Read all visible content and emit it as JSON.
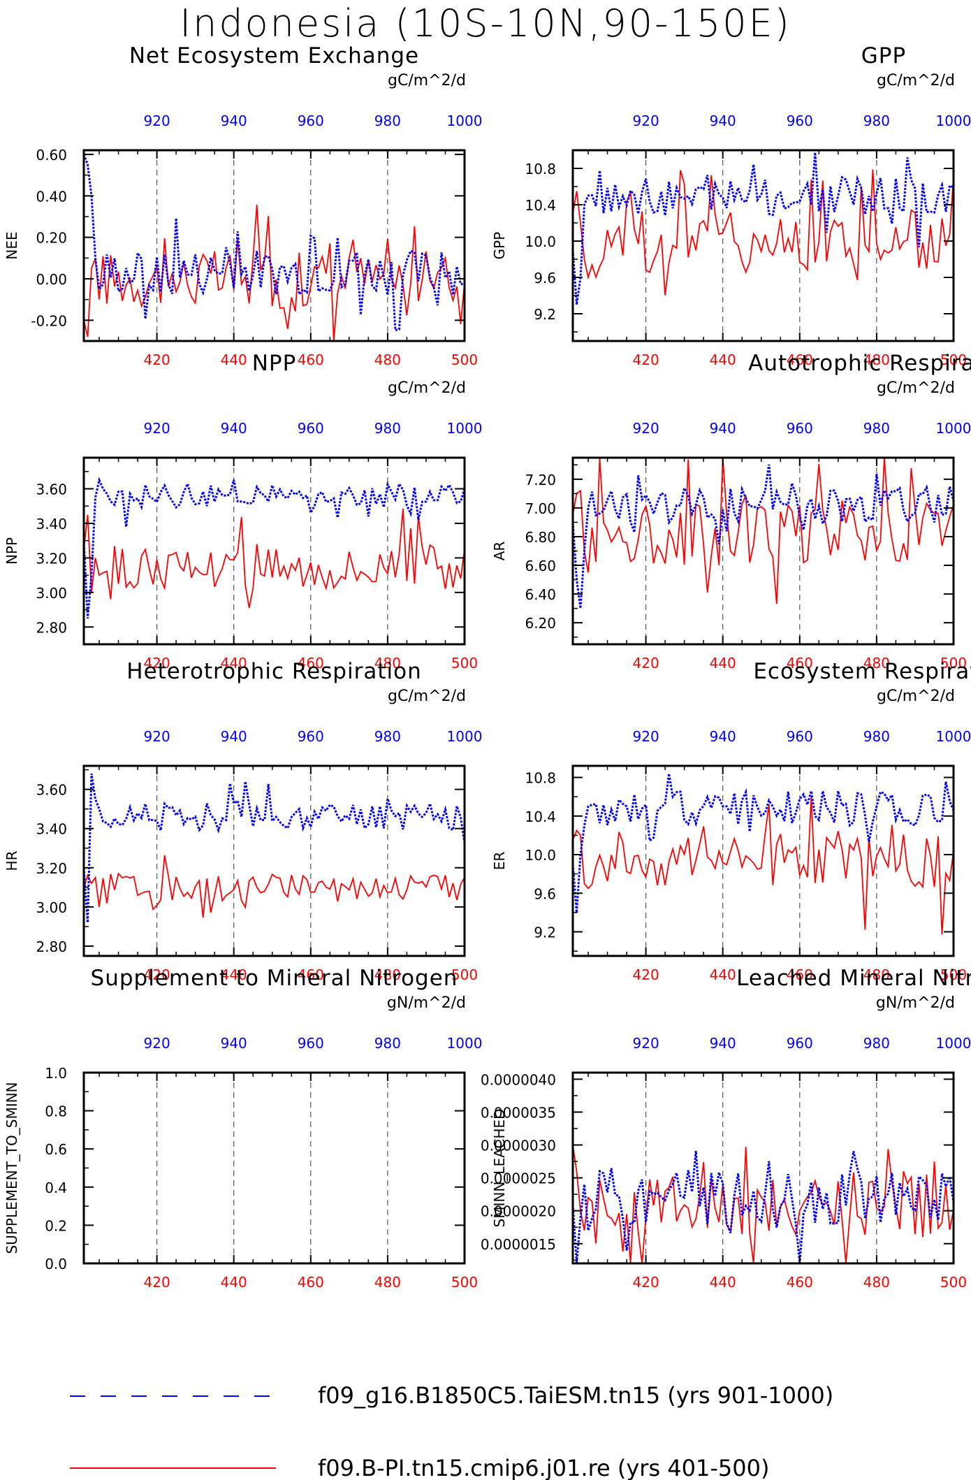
{
  "main_title": "Indonesia (10S-10N,90-150E)",
  "colors": {
    "case1": "#0000ff",
    "case2": "#ff0000",
    "axis": "#000000",
    "grid": "#555555"
  },
  "top_axis": {
    "ticks": [
      920,
      940,
      960,
      980,
      1000
    ],
    "range": [
      901,
      1000
    ]
  },
  "bottom_axis": {
    "ticks": [
      420,
      440,
      460,
      480,
      500
    ],
    "range": [
      401,
      500
    ]
  },
  "legend": {
    "case1": "f09_g16.B1850C5.TaiESM.tn15 (yrs 901-1000)",
    "case2": "f09.B-PI.tn15.cmip6.j01.re (yrs 401-500)"
  },
  "chart_data": [
    {
      "type": "line",
      "title": "Net Ecosystem Exchange",
      "ylabel": "NEE",
      "units": "gC/m^2/d",
      "ylim": [
        -0.3,
        0.62
      ],
      "yticks": [
        "-0.20",
        "0.00",
        "0.20",
        "0.40",
        "0.60"
      ],
      "yticks_num": [
        -0.2,
        0.0,
        0.2,
        0.4,
        0.6
      ],
      "case1": {
        "mean": 0.03,
        "amp": 0.11,
        "start": [
          0.6,
          0.55,
          0.4,
          0.1,
          -0.05
        ]
      },
      "case2": {
        "mean": 0.0,
        "amp": 0.14,
        "start": [
          -0.2,
          -0.28,
          0.05,
          0.1,
          -0.1
        ]
      }
    },
    {
      "type": "line",
      "title": "GPP",
      "ylabel": "GPP",
      "units": "gC/m^2/d",
      "ylim": [
        8.9,
        11.0
      ],
      "yticks": [
        "9.2",
        "9.6",
        "10.0",
        "10.4",
        "10.8"
      ],
      "yticks_num": [
        9.2,
        9.6,
        10.0,
        10.4,
        10.8
      ],
      "case1": {
        "mean": 10.5,
        "amp": 0.22,
        "start": [
          9.9,
          9.3,
          9.6,
          10.4,
          10.5
        ]
      },
      "case2": {
        "mean": 10.0,
        "amp": 0.35,
        "start": [
          10.3,
          10.55,
          10.2,
          9.8,
          9.6
        ]
      }
    },
    {
      "type": "line",
      "title": "NPP",
      "ylabel": "NPP",
      "units": "gC/m^2/d",
      "ylim": [
        2.7,
        3.78
      ],
      "yticks": [
        "2.80",
        "3.00",
        "3.20",
        "3.40",
        "3.60"
      ],
      "yticks_num": [
        2.8,
        3.0,
        3.2,
        3.4,
        3.6
      ],
      "case1": {
        "mean": 3.56,
        "amp": 0.07,
        "start": [
          3.3,
          2.85,
          3.1,
          3.55,
          3.65
        ]
      },
      "case2": {
        "mean": 3.15,
        "amp": 0.13,
        "start": [
          3.25,
          3.45,
          3.0,
          3.2,
          3.1
        ]
      }
    },
    {
      "type": "line",
      "title": "Autotrophic Respiration",
      "ylabel": "AR",
      "units": "gC/m^2/d",
      "ylim": [
        6.05,
        7.35
      ],
      "yticks": [
        "6.20",
        "6.40",
        "6.60",
        "6.80",
        "7.00",
        "7.20"
      ],
      "yticks_num": [
        6.2,
        6.4,
        6.6,
        6.8,
        7.0,
        7.2
      ],
      "case1": {
        "mean": 7.02,
        "amp": 0.13,
        "start": [
          6.9,
          6.5,
          6.3,
          6.7,
          7.0
        ]
      },
      "case2": {
        "mean": 6.82,
        "amp": 0.22,
        "start": [
          6.95,
          7.1,
          7.12,
          6.7,
          6.55
        ]
      }
    },
    {
      "type": "line",
      "title": "Heterotrophic Respiration",
      "ylabel": "HR",
      "units": "gC/m^2/d",
      "ylim": [
        2.75,
        3.72
      ],
      "yticks": [
        "2.80",
        "3.00",
        "3.20",
        "3.40",
        "3.60"
      ],
      "yticks_num": [
        2.8,
        3.0,
        3.2,
        3.4,
        3.6
      ],
      "case1": {
        "mean": 3.46,
        "amp": 0.07,
        "start": [
          3.2,
          2.92,
          3.68,
          3.55,
          3.5
        ]
      },
      "case2": {
        "mean": 3.1,
        "amp": 0.07,
        "start": [
          3.1,
          3.16,
          3.12,
          3.15,
          3.0
        ]
      }
    },
    {
      "type": "line",
      "title": "Ecosystem Respiration",
      "ylabel": "ER",
      "units": "gC/m^2/d",
      "ylim": [
        8.95,
        10.92
      ],
      "yticks": [
        "9.2",
        "9.6",
        "10.0",
        "10.4",
        "10.8"
      ],
      "yticks_num": [
        9.2,
        9.6,
        10.0,
        10.4,
        10.8
      ],
      "case1": {
        "mean": 10.48,
        "amp": 0.18,
        "start": [
          9.9,
          9.4,
          10.0,
          10.3,
          10.5
        ]
      },
      "case2": {
        "mean": 9.95,
        "amp": 0.3,
        "start": [
          10.15,
          10.25,
          10.2,
          9.7,
          9.65
        ]
      }
    },
    {
      "type": "line",
      "title": "Supplement to Mineral Nitrogen",
      "ylabel": "SUPPLEMENT_TO_SMINN",
      "units": "gN/m^2/d",
      "ylim": [
        0.0,
        1.0
      ],
      "yticks": [
        "0.0",
        "0.2",
        "0.4",
        "0.6",
        "0.8",
        "1.0"
      ],
      "yticks_num": [
        0.0,
        0.2,
        0.4,
        0.6,
        0.8,
        1.0
      ],
      "case1": null,
      "case2": null
    },
    {
      "type": "line",
      "title": "Leached Mineral Nitrogen",
      "ylabel": "SMINN_LEACHED",
      "units": "gN/m^2/d",
      "ylim": [
        1.2e-06,
        4.1e-06
      ],
      "yticks": [
        "0.0000015",
        "0.0000020",
        "0.0000025",
        "0.0000030",
        "0.0000035",
        "0.0000040"
      ],
      "yticks_num": [
        1.5e-06,
        2e-06,
        2.5e-06,
        3e-06,
        3.5e-06,
        4e-06
      ],
      "case1": {
        "mean": 2.2e-06,
        "amp": 4.5e-07,
        "start": [
          2.1e-06,
          1.2e-06,
          1.9e-06,
          2.4e-06,
          1.7e-06
        ]
      },
      "case2": {
        "mean": 2.1e-06,
        "amp": 5e-07,
        "start": [
          3e-06,
          2.6e-06,
          2e-06,
          1.7e-06,
          2.2e-06
        ]
      }
    }
  ]
}
